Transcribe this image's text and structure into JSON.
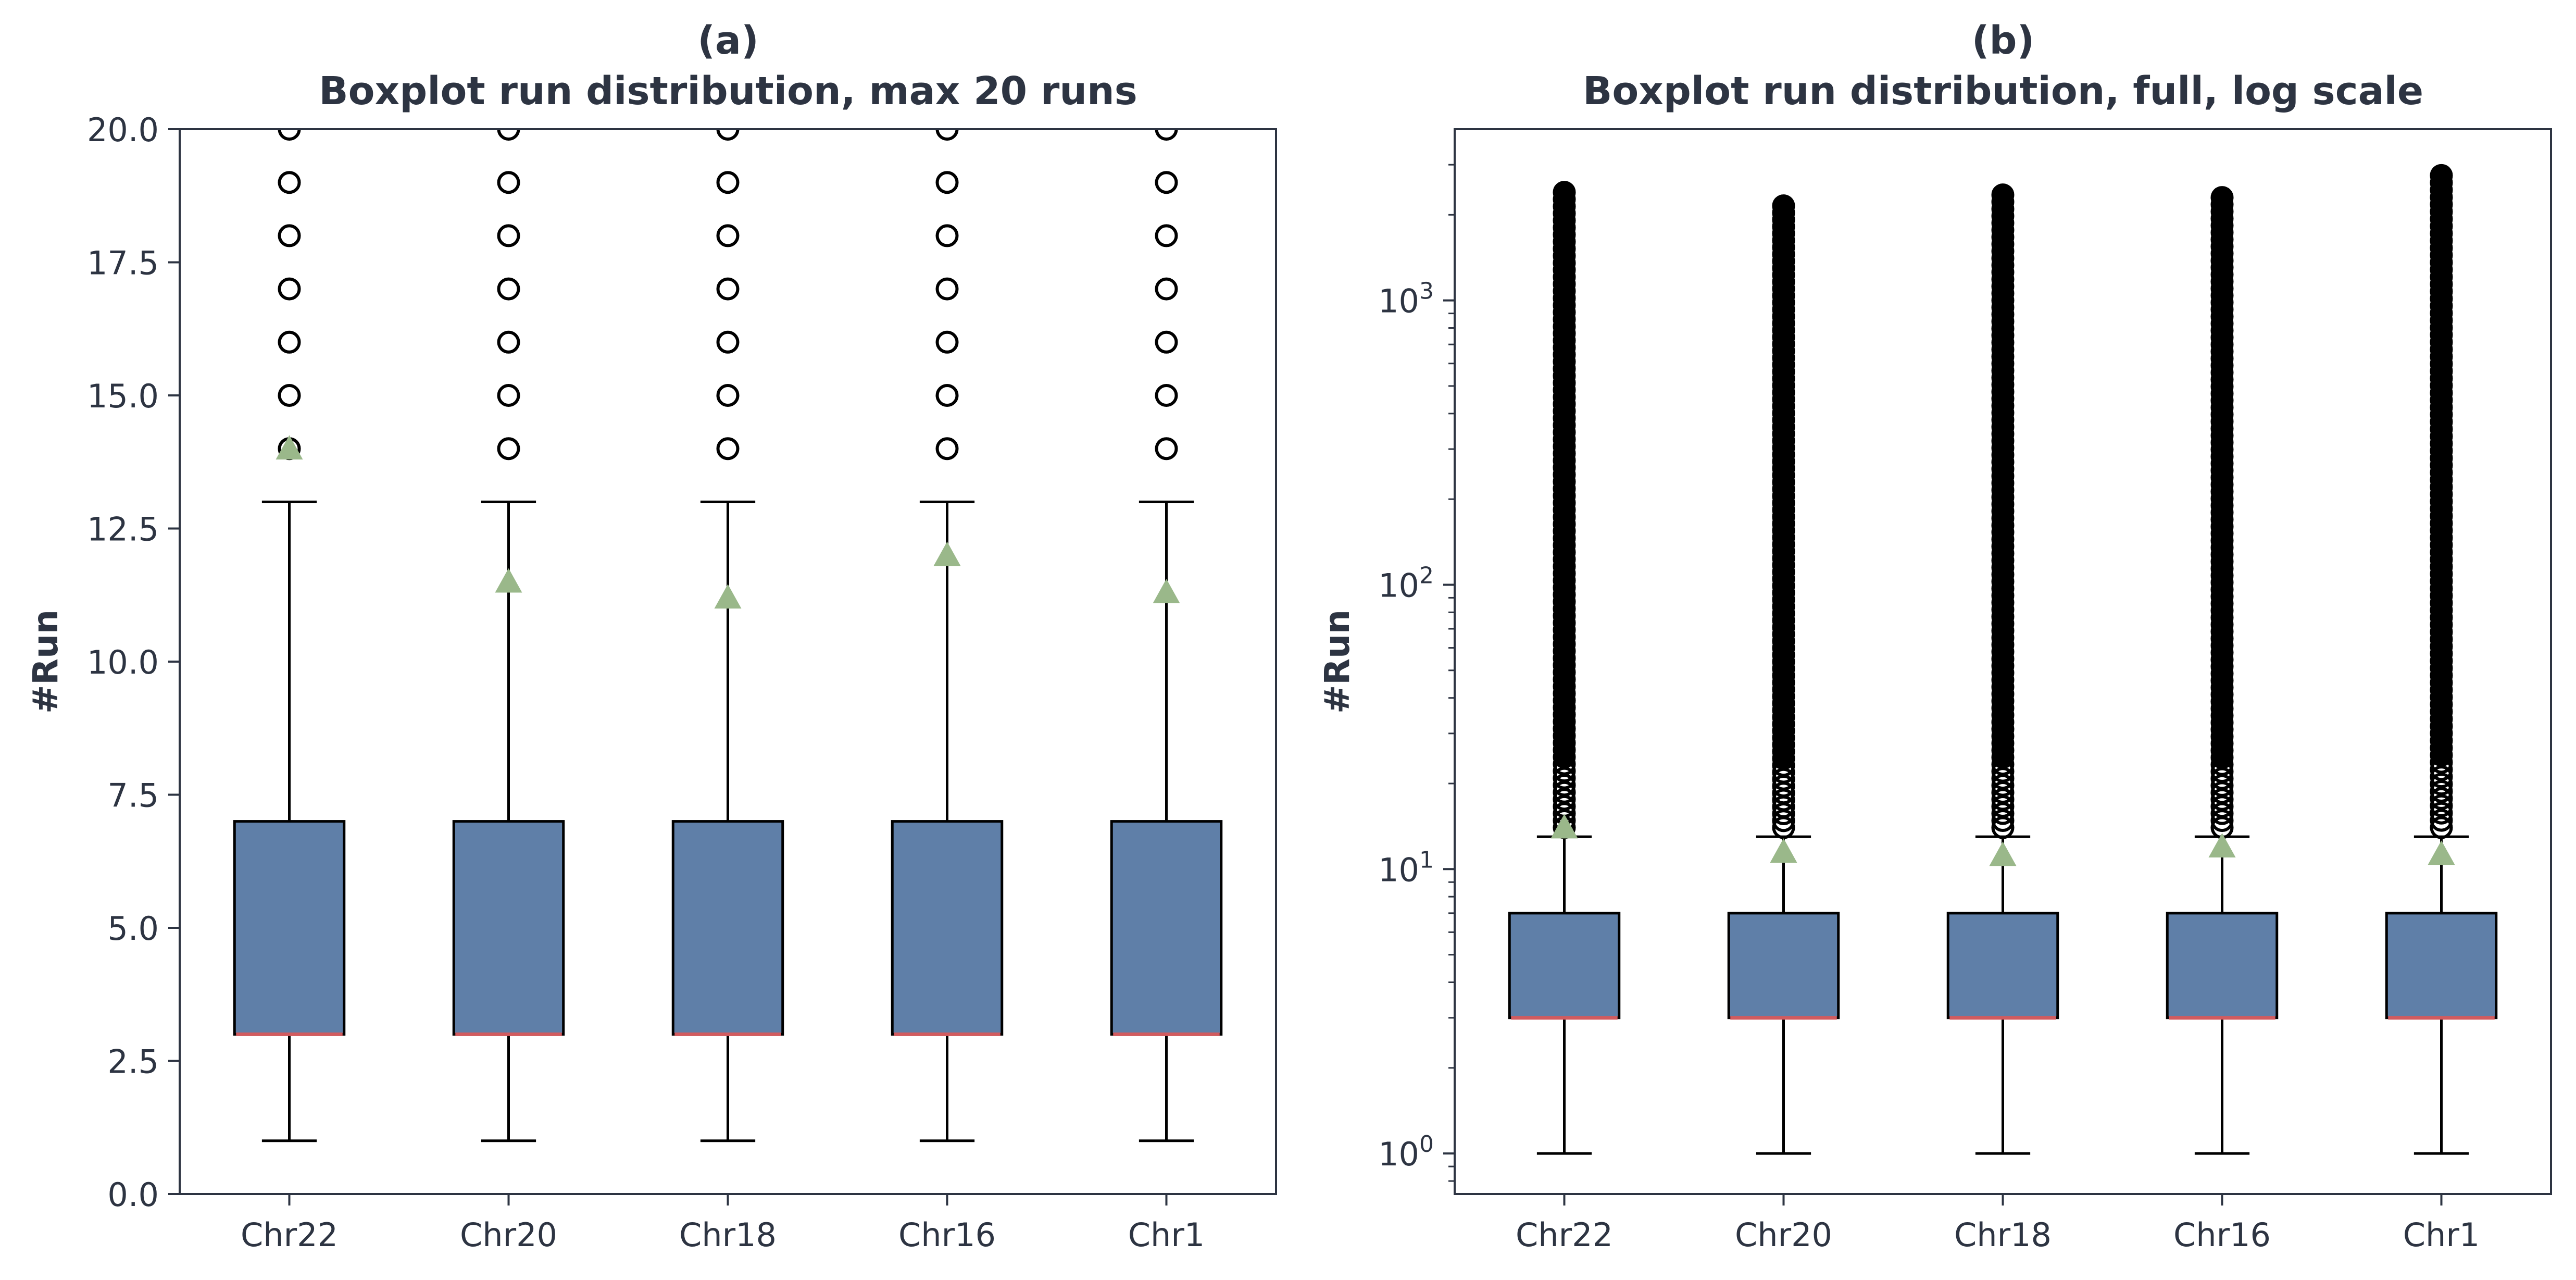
{
  "chart_data": [
    {
      "type": "box",
      "panel": "(a)",
      "title": "Boxplot run distribution, max 20 runs",
      "xlabel": "",
      "ylabel": "#Run",
      "yscale": "linear",
      "ylim": [
        0,
        20
      ],
      "yticks": [
        0,
        2.5,
        5,
        7.5,
        10,
        12.5,
        15,
        17.5,
        20
      ],
      "ytick_labels": [
        "0.0",
        "2.5",
        "5.0",
        "7.5",
        "10.0",
        "12.5",
        "15.0",
        "17.5",
        "20.0"
      ],
      "categories": [
        "Chr22",
        "Chr20",
        "Chr18",
        "Chr16",
        "Chr1"
      ],
      "boxes": [
        {
          "label": "Chr22",
          "whislo": 1,
          "q1": 3,
          "median": 3,
          "q3": 7,
          "whishi": 13,
          "mean": 14.0,
          "fliers": [
            14,
            15,
            16,
            17,
            18,
            19,
            20
          ]
        },
        {
          "label": "Chr20",
          "whislo": 1,
          "q1": 3,
          "median": 3,
          "q3": 7,
          "whishi": 13,
          "mean": 11.5,
          "fliers": [
            14,
            15,
            16,
            17,
            18,
            19,
            20
          ]
        },
        {
          "label": "Chr18",
          "whislo": 1,
          "q1": 3,
          "median": 3,
          "q3": 7,
          "whishi": 13,
          "mean": 11.2,
          "fliers": [
            14,
            15,
            16,
            17,
            18,
            19,
            20
          ]
        },
        {
          "label": "Chr16",
          "whislo": 1,
          "q1": 3,
          "median": 3,
          "q3": 7,
          "whishi": 13,
          "mean": 12.0,
          "fliers": [
            14,
            15,
            16,
            17,
            18,
            19,
            20
          ]
        },
        {
          "label": "Chr1",
          "whislo": 1,
          "q1": 3,
          "median": 3,
          "q3": 7,
          "whishi": 13,
          "mean": 11.3,
          "fliers": [
            14,
            15,
            16,
            17,
            18,
            19,
            20
          ]
        }
      ],
      "colors": {
        "box": "#5f7fa8",
        "median": "#d15b5f",
        "mean": "#9ab88a",
        "flier": "#000000",
        "text": "#2d3442"
      },
      "grid": false,
      "legend": "none"
    },
    {
      "type": "box",
      "panel": "(b)",
      "title": "Boxplot run distribution, full, log scale",
      "xlabel": "",
      "ylabel": "#Run",
      "yscale": "log",
      "ylim": [
        0.72,
        4000
      ],
      "yticks": [
        1,
        10,
        100,
        1000
      ],
      "ytick_labels": [
        {
          "base": "10",
          "exp": "0"
        },
        {
          "base": "10",
          "exp": "1"
        },
        {
          "base": "10",
          "exp": "2"
        },
        {
          "base": "10",
          "exp": "3"
        }
      ],
      "categories": [
        "Chr22",
        "Chr20",
        "Chr18",
        "Chr16",
        "Chr1"
      ],
      "boxes": [
        {
          "label": "Chr22",
          "whislo": 1,
          "q1": 3,
          "median": 3,
          "q3": 7,
          "whishi": 13,
          "mean": 14.0,
          "flier_range": [
            14,
            2400
          ]
        },
        {
          "label": "Chr20",
          "whislo": 1,
          "q1": 3,
          "median": 3,
          "q3": 7,
          "whishi": 13,
          "mean": 11.5,
          "flier_range": [
            14,
            2150
          ]
        },
        {
          "label": "Chr18",
          "whislo": 1,
          "q1": 3,
          "median": 3,
          "q3": 7,
          "whishi": 13,
          "mean": 11.2,
          "flier_range": [
            14,
            2350
          ]
        },
        {
          "label": "Chr16",
          "whislo": 1,
          "q1": 3,
          "median": 3,
          "q3": 7,
          "whishi": 13,
          "mean": 12.0,
          "flier_range": [
            14,
            2300
          ]
        },
        {
          "label": "Chr1",
          "whislo": 1,
          "q1": 3,
          "median": 3,
          "q3": 7,
          "whishi": 13,
          "mean": 11.3,
          "flier_range": [
            14,
            2750
          ]
        }
      ],
      "colors": {
        "box": "#5f7fa8",
        "median": "#d15b5f",
        "mean": "#9ab88a",
        "flier": "#000000",
        "text": "#2d3442"
      },
      "grid": false,
      "legend": "none"
    }
  ]
}
